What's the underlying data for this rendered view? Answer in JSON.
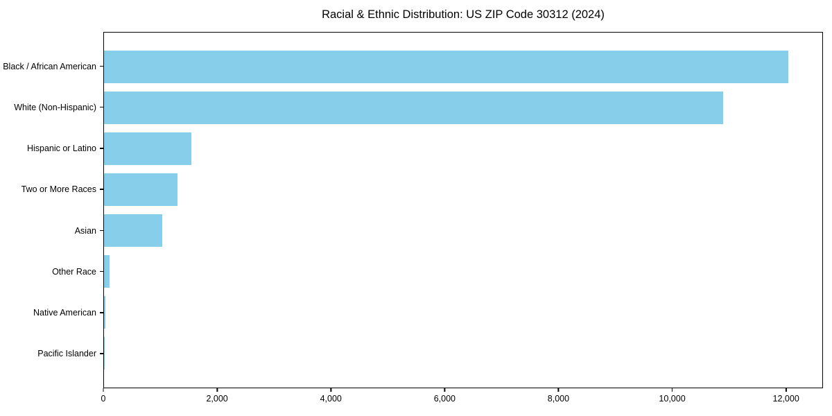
{
  "chart_data": {
    "type": "bar",
    "orientation": "horizontal",
    "title": "Racial & Ethnic Distribution: US ZIP Code 30312 (2024)",
    "categories": [
      "Black / African American",
      "White (Non-Hispanic)",
      "Hispanic or Latino",
      "Two or More Races",
      "Asian",
      "Other Race",
      "Native American",
      "Pacific Islander"
    ],
    "values": [
      12050,
      10900,
      1540,
      1300,
      1020,
      100,
      20,
      10
    ],
    "xlabel": "",
    "ylabel": "",
    "xlim": [
      0,
      12650
    ],
    "xticks": [
      0,
      2000,
      4000,
      6000,
      8000,
      10000,
      12000
    ],
    "xtick_labels": [
      "0",
      "2,000",
      "4,000",
      "6,000",
      "8,000",
      "10,000",
      "12,000"
    ],
    "bar_color": "#87CEEB",
    "grid": false,
    "legend": null,
    "background_color": "#ffffff",
    "spine_color": "#000000"
  }
}
